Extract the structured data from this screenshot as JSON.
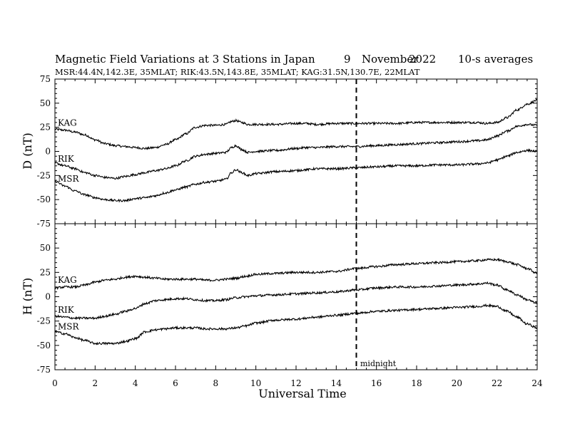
{
  "header": {
    "title": "Magnetic Field Variations at 3 Stations in Japan",
    "day": "9",
    "month": "November",
    "year": "2022",
    "averaging": "10-s averages",
    "stations_line": "MSR:44.4N,142.3E, 35MLAT;  RIK:43.5N,143.8E, 35MLAT;  KAG:31.5N,130.7E, 22MLAT"
  },
  "midnight_label": "midnight",
  "chart_data": [
    {
      "type": "line",
      "panel": "D",
      "ylabel": "D (nT)",
      "ylim": [
        -75,
        75
      ],
      "yticks": [
        -75,
        -50,
        -25,
        0,
        25,
        50,
        75
      ],
      "xlim": [
        0,
        24
      ],
      "xticks": [
        0,
        2,
        4,
        6,
        8,
        10,
        12,
        14,
        16,
        18,
        20,
        22,
        24
      ],
      "xlabel": "",
      "midnight_marker_ut": 15,
      "series": [
        {
          "name": "KAG",
          "x": [
            0,
            0.5,
            1,
            1.5,
            2,
            2.5,
            3,
            3.5,
            4,
            4.5,
            5,
            5.5,
            6,
            6.5,
            7,
            7.5,
            8,
            8.5,
            8.8,
            9,
            9.3,
            9.6,
            10,
            11,
            12,
            12.5,
            13,
            14,
            15,
            16,
            17,
            18,
            19,
            20,
            21,
            21.5,
            22,
            22.5,
            23,
            23.5,
            24
          ],
          "values": [
            23,
            22,
            20,
            17,
            12,
            8,
            6,
            5,
            4,
            3,
            4,
            7,
            12,
            18,
            25,
            27,
            27,
            28,
            31,
            32,
            30,
            28,
            28,
            28,
            29,
            29,
            28,
            29,
            29,
            29,
            29,
            30,
            30,
            30,
            30,
            29,
            30,
            35,
            43,
            49,
            53
          ]
        },
        {
          "name": "RIK",
          "x": [
            0,
            0.5,
            1,
            1.5,
            2,
            2.5,
            3,
            3.5,
            4,
            4.5,
            5,
            5.5,
            6,
            6.5,
            7,
            7.5,
            8,
            8.5,
            8.8,
            9,
            9.3,
            9.6,
            10,
            11,
            12,
            12.5,
            13,
            14,
            15,
            16,
            17,
            18,
            19,
            20,
            21,
            21.5,
            22,
            22.5,
            23,
            23.5,
            24
          ],
          "values": [
            -12,
            -15,
            -18,
            -22,
            -25,
            -27,
            -28,
            -26,
            -24,
            -22,
            -20,
            -18,
            -15,
            -10,
            -5,
            -3,
            -2,
            -1,
            4,
            6,
            2,
            -1,
            0,
            1,
            3,
            4,
            4,
            5,
            5,
            6,
            7,
            8,
            9,
            10,
            11,
            12,
            16,
            21,
            26,
            28,
            27
          ]
        },
        {
          "name": "MSR",
          "x": [
            0,
            0.5,
            1,
            1.5,
            2,
            2.5,
            3,
            3.5,
            4,
            4.5,
            5,
            5.5,
            6,
            6.5,
            7,
            7.5,
            8,
            8.5,
            8.8,
            9,
            9.3,
            9.6,
            10,
            11,
            12,
            12.5,
            13,
            14,
            15,
            16,
            17,
            18,
            19,
            20,
            21,
            21.5,
            22,
            22.5,
            23,
            23.5,
            24
          ],
          "values": [
            -31,
            -36,
            -41,
            -45,
            -48,
            -50,
            -51,
            -51,
            -49,
            -48,
            -46,
            -43,
            -40,
            -37,
            -34,
            -32,
            -31,
            -29,
            -22,
            -19,
            -22,
            -25,
            -23,
            -21,
            -20,
            -19,
            -18,
            -18,
            -17,
            -16,
            -15,
            -15,
            -14,
            -14,
            -13,
            -12,
            -9,
            -5,
            -1,
            1,
            0
          ]
        }
      ]
    },
    {
      "type": "line",
      "panel": "H",
      "ylabel": "H (nT)",
      "ylim": [
        -75,
        75
      ],
      "yticks": [
        -75,
        -50,
        -25,
        0,
        25,
        50,
        75
      ],
      "xlim": [
        0,
        24
      ],
      "xticks": [
        0,
        2,
        4,
        6,
        8,
        10,
        12,
        14,
        16,
        18,
        20,
        22,
        24
      ],
      "xlabel": "Universal Time",
      "midnight_marker_ut": 15,
      "series": [
        {
          "name": "KAG",
          "x": [
            0,
            0.5,
            1,
            1.5,
            2,
            2.5,
            3,
            3.5,
            4,
            4.5,
            5,
            5.5,
            6,
            6.5,
            7,
            7.5,
            8,
            8.5,
            9,
            9.5,
            10,
            11,
            12,
            13,
            14,
            15,
            16,
            17,
            18,
            19,
            20,
            21,
            21.5,
            22,
            22.5,
            23,
            23.5,
            24
          ],
          "values": [
            9,
            10,
            10,
            12,
            15,
            17,
            18,
            20,
            21,
            20,
            19,
            18,
            18,
            18,
            18,
            17,
            17,
            18,
            19,
            21,
            23,
            24,
            25,
            25,
            26,
            29,
            31,
            33,
            34,
            35,
            36,
            37,
            38,
            38,
            36,
            33,
            29,
            24
          ]
        },
        {
          "name": "RIK",
          "x": [
            0,
            0.5,
            1,
            1.5,
            2,
            2.5,
            3,
            3.5,
            4,
            4.5,
            5,
            5.5,
            6,
            6.5,
            7,
            7.5,
            8,
            8.5,
            9,
            9.5,
            10,
            11,
            12,
            13,
            14,
            15,
            16,
            17,
            18,
            19,
            20,
            21,
            21.5,
            22,
            22.5,
            23,
            23.5,
            24
          ],
          "values": [
            -20,
            -21,
            -22,
            -22,
            -22,
            -20,
            -18,
            -15,
            -12,
            -7,
            -4,
            -3,
            -2,
            -2,
            -3,
            -4,
            -4,
            -3,
            -1,
            0,
            1,
            2,
            3,
            4,
            5,
            7,
            9,
            10,
            10,
            11,
            12,
            13,
            14,
            12,
            7,
            2,
            -3,
            -7
          ]
        },
        {
          "name": "MSR",
          "x": [
            0,
            0.5,
            1,
            1.5,
            2,
            2.5,
            3,
            3.5,
            4,
            4.5,
            5,
            5.5,
            6,
            6.5,
            7,
            7.5,
            8,
            8.5,
            9,
            9.5,
            10,
            11,
            12,
            13,
            14,
            15,
            16,
            17,
            18,
            19,
            20,
            21,
            21.5,
            22,
            22.5,
            23,
            23.5,
            24
          ],
          "values": [
            -36,
            -38,
            -42,
            -45,
            -48,
            -48,
            -48,
            -46,
            -43,
            -36,
            -34,
            -33,
            -32,
            -32,
            -32,
            -33,
            -33,
            -33,
            -32,
            -30,
            -27,
            -24,
            -23,
            -21,
            -19,
            -17,
            -15,
            -14,
            -13,
            -12,
            -11,
            -10,
            -9,
            -10,
            -15,
            -21,
            -28,
            -32
          ]
        }
      ]
    }
  ]
}
